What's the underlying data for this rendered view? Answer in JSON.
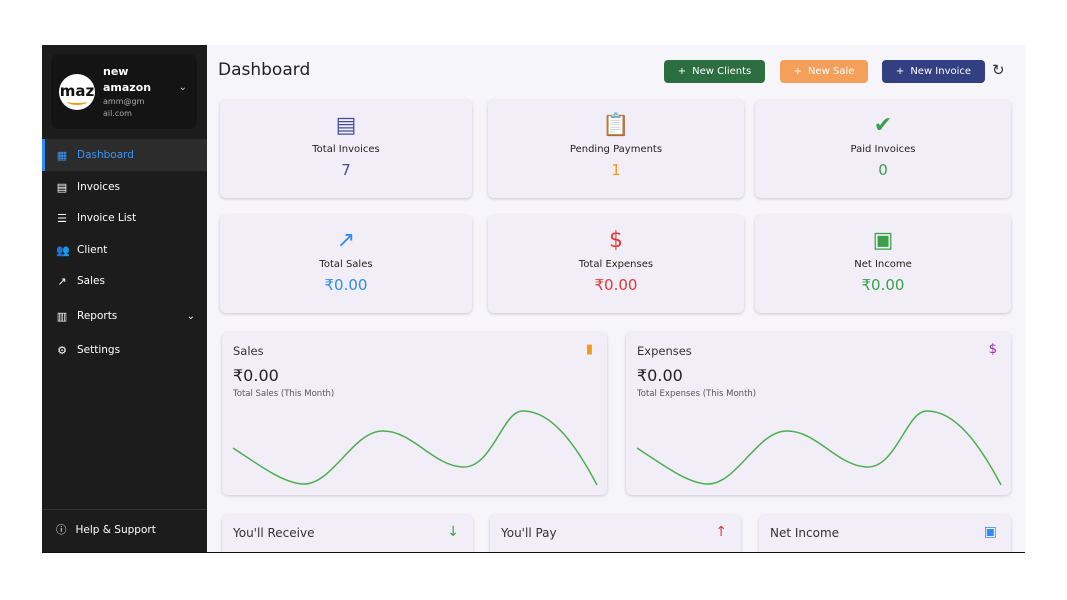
{
  "profile": {
    "name": "new amazon",
    "email": "amm@gmail.com",
    "logo_text": "mazo"
  },
  "sidebar": {
    "items": [
      {
        "label": "Dashboard",
        "icon": "dashboard-icon"
      },
      {
        "label": "Invoices",
        "icon": "invoice-icon"
      },
      {
        "label": "Invoice List",
        "icon": "list-icon"
      },
      {
        "label": "Client",
        "icon": "people-icon"
      },
      {
        "label": "Sales",
        "icon": "trending-up-icon"
      },
      {
        "label": "Reports",
        "icon": "bar-chart-icon"
      },
      {
        "label": "Settings",
        "icon": "gear-icon"
      }
    ],
    "help": "Help & Support"
  },
  "header": {
    "title": "Dashboard",
    "new_clients": "New Clients",
    "new_sale": "New Sale",
    "new_invoice": "New Invoice"
  },
  "stats": [
    {
      "label": "Total Invoices",
      "value": "7",
      "color": "#3f4f9e"
    },
    {
      "label": "Pending Payments",
      "value": "1",
      "color": "#f39a1e"
    },
    {
      "label": "Paid Invoices",
      "value": "0",
      "color": "#3aa14a"
    },
    {
      "label": "Total Sales",
      "value": "₹0.00",
      "color": "#2f8cf0"
    },
    {
      "label": "Total Expenses",
      "value": "₹0.00",
      "color": "#e53935"
    },
    {
      "label": "Net Income",
      "value": "₹0.00",
      "color": "#3aa14a"
    }
  ],
  "charts": [
    {
      "title": "Sales",
      "amount": "₹0.00",
      "subtitle": "Total Sales (This Month)"
    },
    {
      "title": "Expenses",
      "amount": "₹0.00",
      "subtitle": "Total Expenses (This Month)"
    }
  ],
  "bottom": [
    {
      "title": "You'll Receive"
    },
    {
      "title": "You'll Pay"
    },
    {
      "title": "Net Income"
    }
  ]
}
